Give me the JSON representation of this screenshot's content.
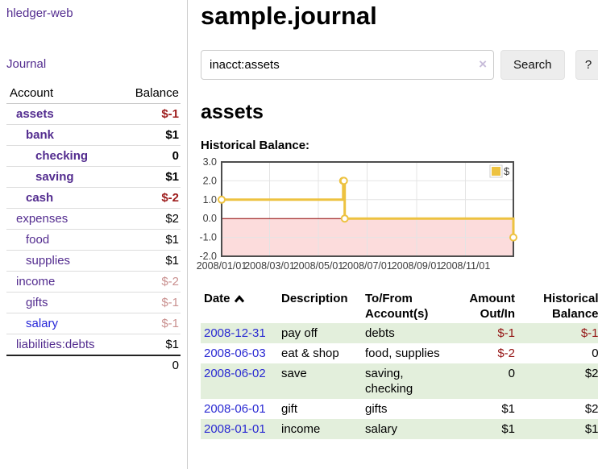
{
  "app": {
    "title": "hledger-web"
  },
  "colors": {
    "link_purple": "#532c8f",
    "link_blue": "#2626d8",
    "negative_strong": "#9d1c1c",
    "negative_dim": "#c9908f",
    "row_green": "#e3efdc",
    "negative_amount": "#941414"
  },
  "sidebar": {
    "nav": [
      {
        "label": "Journal"
      }
    ],
    "accounts": {
      "headers": {
        "account": "Account",
        "balance": "Balance"
      },
      "rows": [
        {
          "name": "assets",
          "balance": "$-1"
        },
        {
          "name": "bank",
          "balance": "$1"
        },
        {
          "name": "checking",
          "balance": "0"
        },
        {
          "name": "saving",
          "balance": "$1"
        },
        {
          "name": "cash",
          "balance": "$-2"
        },
        {
          "name": "expenses",
          "balance": "$2"
        },
        {
          "name": "food",
          "balance": "$1"
        },
        {
          "name": "supplies",
          "balance": "$1"
        },
        {
          "name": "income",
          "balance": "$-2"
        },
        {
          "name": "gifts",
          "balance": "$-1"
        },
        {
          "name": "salary",
          "balance": "$-1"
        },
        {
          "name": "liabilities:debts",
          "balance": "$1"
        }
      ],
      "total": "0"
    }
  },
  "main": {
    "title": "sample.journal",
    "search": {
      "value": "inacct:assets",
      "clear_icon": "×",
      "button": "Search",
      "help_button": "?"
    },
    "account_heading": "assets",
    "chart_label": "Historical Balance:"
  },
  "chart_data": {
    "type": "line",
    "step": true,
    "title": "Historical Balance",
    "series": [
      {
        "name": "$",
        "color": "#edc240",
        "points": [
          [
            "2008-01-01",
            1
          ],
          [
            "2008-06-01",
            2
          ],
          [
            "2008-06-02",
            2
          ],
          [
            "2008-06-03",
            0
          ],
          [
            "2008-12-31",
            -1
          ]
        ]
      }
    ],
    "x_range": [
      "2008-01-01",
      "2008-12-31"
    ],
    "ylim": [
      -2,
      3
    ],
    "y_ticks": [
      3.0,
      2.0,
      1.0,
      0.0,
      -1.0,
      -2.0
    ],
    "x_ticks": [
      "2008/01/01",
      "2008/03/01",
      "2008/05/01",
      "2008/07/01",
      "2008/09/01",
      "2008/11/01"
    ],
    "legend": {
      "label": "$",
      "position": "top-right"
    },
    "grid": true,
    "negative_region_color": "#fcdcdc",
    "zero_line_color": "#8b0000",
    "border_color": "#4d4d4d",
    "gridline_color": "#e4e4e4",
    "tick_label_color": "#3c3c3c"
  },
  "transactions": {
    "sort": "ascending",
    "headers": {
      "date": "Date",
      "description": "Description",
      "tofrom1": "To/From",
      "tofrom2": "Account(s)",
      "amount1": "Amount",
      "amount2": "Out/In",
      "balance1": "Historical",
      "balance2": "Balance"
    },
    "rows": [
      {
        "date": "2008-12-31",
        "description": "pay off",
        "accounts": "debts",
        "amount": "$-1",
        "balance": "$-1"
      },
      {
        "date": "2008-06-03",
        "description": "eat & shop",
        "accounts": "food, supplies",
        "amount": "$-2",
        "balance": "0"
      },
      {
        "date": "2008-06-02",
        "description": "save",
        "accounts": "saving, checking",
        "amount": "0",
        "balance": "$2"
      },
      {
        "date": "2008-06-01",
        "description": "gift",
        "accounts": "gifts",
        "amount": "$1",
        "balance": "$2"
      },
      {
        "date": "2008-01-01",
        "description": "income",
        "accounts": "salary",
        "amount": "$1",
        "balance": "$1"
      }
    ]
  }
}
